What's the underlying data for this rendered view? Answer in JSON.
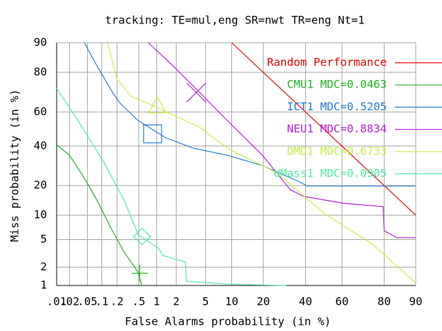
{
  "chart_data": {
    "type": "det",
    "title": "tracking: TE=mul,eng SR=nwt TR=eng Nt=1",
    "x_label": "False Alarms probability (in %)",
    "y_label": "Miss probability (in %)",
    "xlim": [
      0.01,
      90
    ],
    "ylim": [
      1,
      90
    ],
    "xticks": [
      {
        "value": 0.01,
        "label": ".01"
      },
      {
        "value": 0.02,
        "label": ".02"
      },
      {
        "value": 0.05,
        "label": ".05"
      },
      {
        "value": 0.1,
        "label": ".1"
      },
      {
        "value": 0.2,
        "label": ".2"
      },
      {
        "value": 0.5,
        "label": ".5"
      },
      1,
      2,
      5,
      10,
      20,
      40,
      60,
      80,
      90
    ],
    "yticks": [
      1,
      2,
      5,
      10,
      20,
      40,
      60,
      80,
      90
    ],
    "grid": true,
    "series": [
      {
        "name": "Random Performance",
        "color": "#e00000",
        "x": [
          10,
          20,
          40,
          60,
          80,
          90
        ],
        "y": [
          90,
          80,
          60,
          40,
          20,
          10
        ]
      },
      {
        "name": "CMU1 MDC=0.0463",
        "color": "#20b020",
        "x": [
          0.01,
          0.02,
          0.04,
          0.079,
          0.15,
          0.27,
          0.49,
          0.56
        ],
        "y": [
          40.7,
          34.8,
          24.3,
          14.6,
          7.2,
          3.4,
          1.65,
          1
        ],
        "marker": {
          "shape": "plus",
          "x": 0.52,
          "y": 1.6
        }
      },
      {
        "name": "ICT1 MDC=0.5205",
        "color": "#2078d0",
        "x": [
          0.043,
          0.079,
          0.17,
          0.23,
          0.49,
          1.4,
          3.5,
          9,
          19.7,
          35.5,
          41,
          90
        ],
        "y": [
          90,
          82.7,
          70,
          64.8,
          54.9,
          44.7,
          38.7,
          34.8,
          29.3,
          22.1,
          19.8,
          19.8
        ],
        "marker": {
          "shape": "square",
          "x": 0.86,
          "y": 47.1
        }
      },
      {
        "name": "NEU1 MDC=0.8834",
        "color": "#b020d0",
        "x": [
          0.73,
          1.77,
          3.5,
          9,
          19.7,
          32,
          39,
          61.8,
          79.6,
          80,
          84.6,
          90
        ],
        "y": [
          90,
          82.7,
          73.7,
          54.9,
          34.8,
          18.4,
          15.8,
          13.4,
          12.4,
          6.5,
          5.3,
          5.3
        ],
        "marker": {
          "shape": "cross",
          "x": 3.8,
          "y": 70.6
        }
      },
      {
        "name": "DMD1 MDC=0.6733",
        "color": "#c4f040",
        "x": [
          0.13,
          0.2,
          0.37,
          0.73,
          2.7,
          4.3,
          9,
          25.4,
          50.5,
          75.3,
          90
        ],
        "y": [
          90,
          77,
          68.5,
          64.8,
          54.9,
          50.8,
          38.7,
          25.9,
          10.4,
          4.3,
          1.1
        ],
        "marker": {
          "shape": "triangle",
          "x": 1.03,
          "y": 62.9
        }
      },
      {
        "name": "UMass1 MDC=0.0905",
        "color": "#50e8a0",
        "x": [
          0.01,
          0.028,
          0.11,
          0.27,
          0.49,
          1.08,
          1.25,
          2.7,
          2.8,
          9,
          30
        ],
        "y": [
          72.7,
          56.9,
          31.1,
          14.6,
          5.8,
          3.8,
          3.0,
          2.4,
          1.18,
          1.05,
          1
        ],
        "marker": {
          "shape": "diamond",
          "x": 0.57,
          "y": 5.5
        }
      }
    ]
  }
}
